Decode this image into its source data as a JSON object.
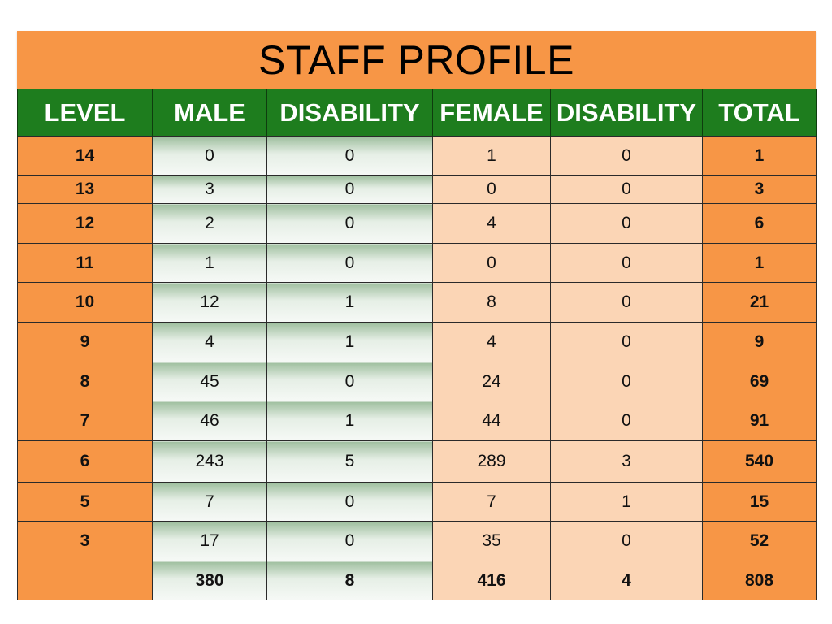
{
  "title": "STAFF PROFILE",
  "table": {
    "headers": [
      "LEVEL",
      "MALE",
      "DISABILITY",
      "FEMALE",
      "DISABILITY",
      "TOTAL"
    ],
    "rows": [
      {
        "level": "14",
        "male": "0",
        "male_disability": "0",
        "female": "1",
        "female_disability": "0",
        "total": "1"
      },
      {
        "level": "13",
        "male": "3",
        "male_disability": "0",
        "female": "0",
        "female_disability": "0",
        "total": "3"
      },
      {
        "level": "12",
        "male": "2",
        "male_disability": "0",
        "female": "4",
        "female_disability": "0",
        "total": "6"
      },
      {
        "level": "11",
        "male": "1",
        "male_disability": "0",
        "female": "0",
        "female_disability": "0",
        "total": "1"
      },
      {
        "level": "10",
        "male": "12",
        "male_disability": "1",
        "female": "8",
        "female_disability": "0",
        "total": "21"
      },
      {
        "level": "9",
        "male": "4",
        "male_disability": "1",
        "female": "4",
        "female_disability": "0",
        "total": "9"
      },
      {
        "level": "8",
        "male": "45",
        "male_disability": "0",
        "female": "24",
        "female_disability": "0",
        "total": "69"
      },
      {
        "level": "7",
        "male": "46",
        "male_disability": "1",
        "female": "44",
        "female_disability": "0",
        "total": "91"
      },
      {
        "level": "6",
        "male": "243",
        "male_disability": "5",
        "female": "289",
        "female_disability": "3",
        "total": "540"
      },
      {
        "level": "5",
        "male": "7",
        "male_disability": "0",
        "female": "7",
        "female_disability": "1",
        "total": "15"
      },
      {
        "level": "3",
        "male": "17",
        "male_disability": "0",
        "female": "35",
        "female_disability": "0",
        "total": "52"
      }
    ],
    "totals": {
      "level": "",
      "male": "380",
      "male_disability": "8",
      "female": "416",
      "female_disability": "4",
      "total": "808"
    }
  },
  "colors": {
    "orange": "#f79646",
    "header_green": "#1e7d1e",
    "light_peach": "#fbd5b5"
  }
}
